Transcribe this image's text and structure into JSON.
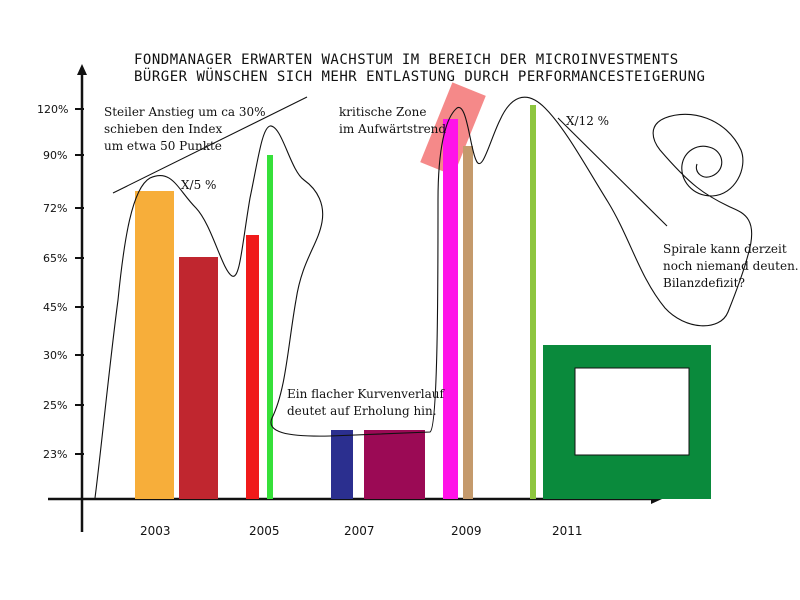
{
  "chart_data": {
    "type": "bar",
    "title_lines": [
      "FONDMANAGER ERWARTEN WACHSTUM IM BEREICH DER MICROINVESTMENTS",
      "BÜRGER WÜNSCHEN SICH MEHR ENTLASTUNG DURCH PERFORMANCESTEIGERUNG"
    ],
    "y_ticks": [
      "23%",
      "25%",
      "30%",
      "45%",
      "65%",
      "72%",
      "90%",
      "120%"
    ],
    "x_ticks": [
      "2003",
      "2005",
      "2007",
      "2009",
      "2011"
    ],
    "bars": [
      {
        "color": "#f7ae3a",
        "level": 0
      },
      {
        "color": "#c0262f",
        "level": 0
      },
      {
        "color": "#f01a1a",
        "level": 0
      },
      {
        "color": "#36e03a",
        "level": 0
      },
      {
        "color": "#2b2f8f",
        "level": 0
      },
      {
        "color": "#9b0a55",
        "level": 0
      },
      {
        "color": "#ff13e8",
        "level": 0
      },
      {
        "color": "#c49a6c",
        "level": 0
      },
      {
        "color": "#8ec63f",
        "level": 0
      }
    ],
    "annotations": {
      "steep": [
        "Steiler Anstieg um ca 30%",
        "schieben den Index",
        "um etwa 50 Punkte"
      ],
      "x5": "X/5 %",
      "critical": [
        "kritische Zone",
        "im Aufwärtstrend"
      ],
      "x12": "X/12 %",
      "flat": [
        "Ein flacher Kurvenverlauf",
        "deutet auf Erholung hin."
      ],
      "spiral": [
        "Spirale kann derzeit",
        "noch niemand deuten.",
        "Bilanzdefizit?"
      ]
    },
    "colors": {
      "highlight": "#f26b6b",
      "box": "#0a8a3c"
    }
  }
}
